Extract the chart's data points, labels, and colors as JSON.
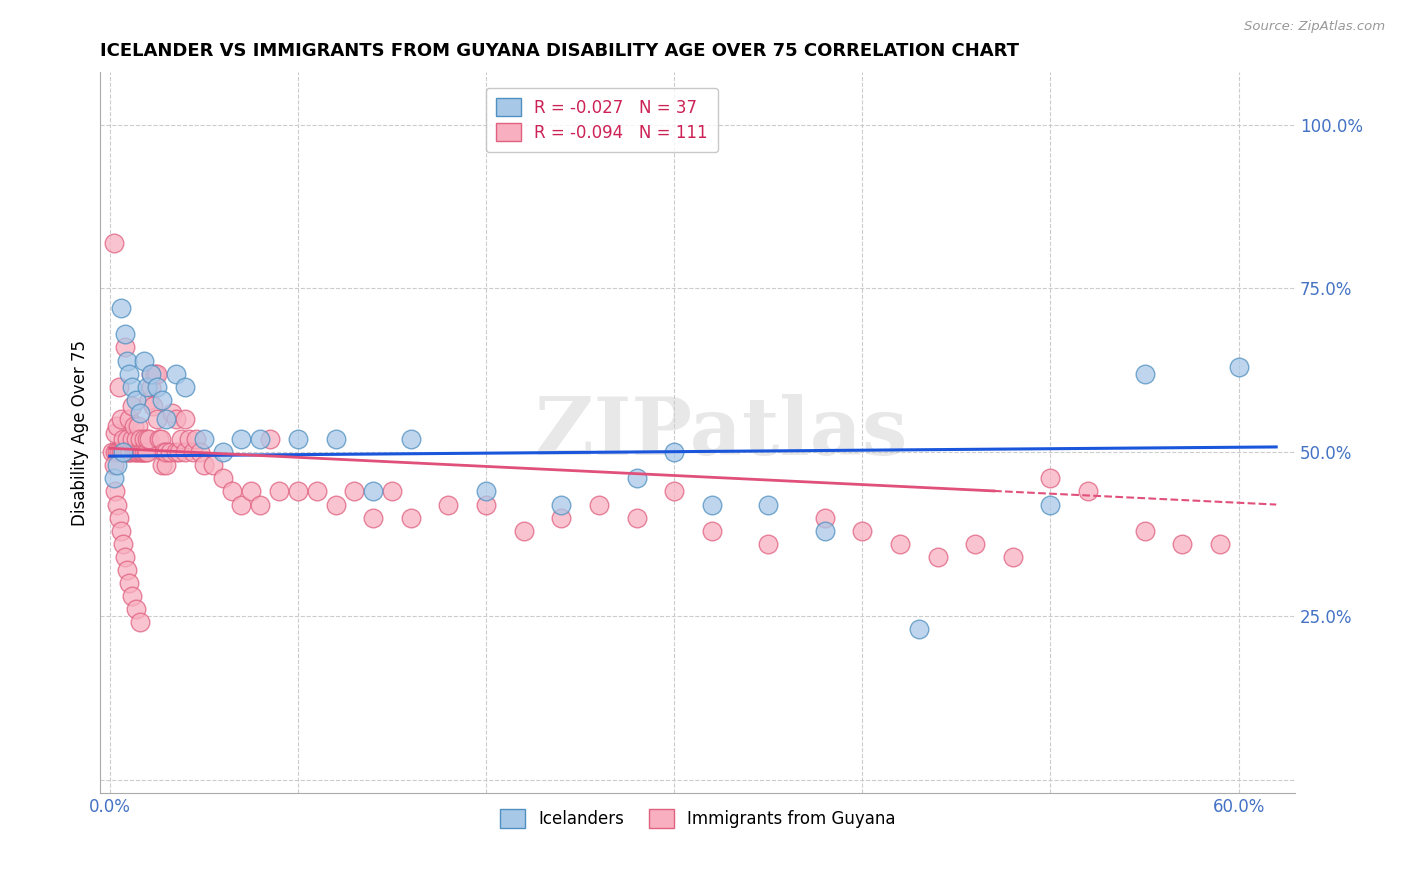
{
  "title": "ICELANDER VS IMMIGRANTS FROM GUYANA DISABILITY AGE OVER 75 CORRELATION CHART",
  "source": "Source: ZipAtlas.com",
  "xlim": [
    -0.005,
    0.63
  ],
  "ylim": [
    -0.02,
    1.08
  ],
  "xticks": [
    0.0,
    0.1,
    0.2,
    0.3,
    0.4,
    0.5,
    0.6
  ],
  "xlabels": [
    "0.0%",
    "",
    "",
    "",
    "",
    "",
    "60.0%"
  ],
  "yticks": [
    0.0,
    0.25,
    0.5,
    0.75,
    1.0
  ],
  "ylabels": [
    "",
    "25.0%",
    "50.0%",
    "75.0%",
    "100.0%"
  ],
  "watermark": "ZIPatlas",
  "background_color": "#ffffff",
  "title_fontsize": 13,
  "tick_label_color": "#4472c4",
  "grid_color": "#cccccc",
  "icelanders": {
    "color": "#a8c8e8",
    "edge_color": "#5090c0",
    "trend_color": "#1a56db",
    "trend_x": [
      0.0,
      0.62
    ],
    "trend_y": [
      0.494,
      0.508
    ],
    "x": [
      0.002,
      0.004,
      0.006,
      0.007,
      0.008,
      0.009,
      0.01,
      0.012,
      0.014,
      0.016,
      0.018,
      0.02,
      0.022,
      0.025,
      0.028,
      0.03,
      0.035,
      0.04,
      0.05,
      0.06,
      0.07,
      0.08,
      0.1,
      0.12,
      0.14,
      0.16,
      0.2,
      0.24,
      0.28,
      0.3,
      0.32,
      0.35,
      0.38,
      0.43,
      0.5,
      0.55,
      0.6
    ],
    "y": [
      0.46,
      0.48,
      0.72,
      0.5,
      0.68,
      0.64,
      0.62,
      0.6,
      0.58,
      0.56,
      0.64,
      0.6,
      0.62,
      0.6,
      0.58,
      0.55,
      0.62,
      0.6,
      0.52,
      0.5,
      0.52,
      0.52,
      0.52,
      0.52,
      0.44,
      0.52,
      0.44,
      0.42,
      0.46,
      0.5,
      0.42,
      0.42,
      0.38,
      0.23,
      0.42,
      0.62,
      0.63
    ]
  },
  "guyana": {
    "color": "#f8b0c0",
    "edge_color": "#e06080",
    "trend_color": "#e0507a",
    "trend_x": [
      0.0,
      0.62
    ],
    "trend_y": [
      0.506,
      0.42
    ],
    "x": [
      0.001,
      0.002,
      0.003,
      0.003,
      0.004,
      0.004,
      0.005,
      0.005,
      0.006,
      0.006,
      0.007,
      0.007,
      0.008,
      0.008,
      0.009,
      0.009,
      0.01,
      0.01,
      0.011,
      0.012,
      0.012,
      0.013,
      0.013,
      0.014,
      0.014,
      0.015,
      0.015,
      0.016,
      0.016,
      0.017,
      0.017,
      0.018,
      0.018,
      0.019,
      0.02,
      0.02,
      0.021,
      0.021,
      0.022,
      0.022,
      0.023,
      0.024,
      0.025,
      0.025,
      0.026,
      0.027,
      0.028,
      0.029,
      0.03,
      0.03,
      0.032,
      0.033,
      0.035,
      0.035,
      0.037,
      0.038,
      0.04,
      0.04,
      0.042,
      0.044,
      0.046,
      0.048,
      0.05,
      0.055,
      0.06,
      0.065,
      0.07,
      0.075,
      0.08,
      0.085,
      0.09,
      0.1,
      0.11,
      0.12,
      0.13,
      0.14,
      0.15,
      0.16,
      0.18,
      0.2,
      0.22,
      0.24,
      0.26,
      0.28,
      0.3,
      0.32,
      0.35,
      0.38,
      0.4,
      0.42,
      0.44,
      0.46,
      0.48,
      0.5,
      0.52,
      0.55,
      0.57,
      0.59,
      0.002,
      0.003,
      0.004,
      0.005,
      0.006,
      0.007,
      0.008,
      0.009,
      0.01,
      0.012,
      0.014,
      0.016
    ],
    "y": [
      0.5,
      0.82,
      0.5,
      0.53,
      0.5,
      0.54,
      0.5,
      0.6,
      0.5,
      0.55,
      0.5,
      0.52,
      0.5,
      0.66,
      0.5,
      0.52,
      0.5,
      0.55,
      0.5,
      0.57,
      0.52,
      0.5,
      0.54,
      0.5,
      0.52,
      0.5,
      0.54,
      0.5,
      0.52,
      0.5,
      0.5,
      0.5,
      0.52,
      0.5,
      0.5,
      0.52,
      0.58,
      0.52,
      0.62,
      0.6,
      0.57,
      0.62,
      0.55,
      0.62,
      0.52,
      0.52,
      0.48,
      0.5,
      0.48,
      0.5,
      0.5,
      0.56,
      0.5,
      0.55,
      0.5,
      0.52,
      0.55,
      0.5,
      0.52,
      0.5,
      0.52,
      0.5,
      0.48,
      0.48,
      0.46,
      0.44,
      0.42,
      0.44,
      0.42,
      0.52,
      0.44,
      0.44,
      0.44,
      0.42,
      0.44,
      0.4,
      0.44,
      0.4,
      0.42,
      0.42,
      0.38,
      0.4,
      0.42,
      0.4,
      0.44,
      0.38,
      0.36,
      0.4,
      0.38,
      0.36,
      0.34,
      0.36,
      0.34,
      0.46,
      0.44,
      0.38,
      0.36,
      0.36,
      0.48,
      0.44,
      0.42,
      0.4,
      0.38,
      0.36,
      0.34,
      0.32,
      0.3,
      0.28,
      0.26,
      0.24
    ]
  }
}
